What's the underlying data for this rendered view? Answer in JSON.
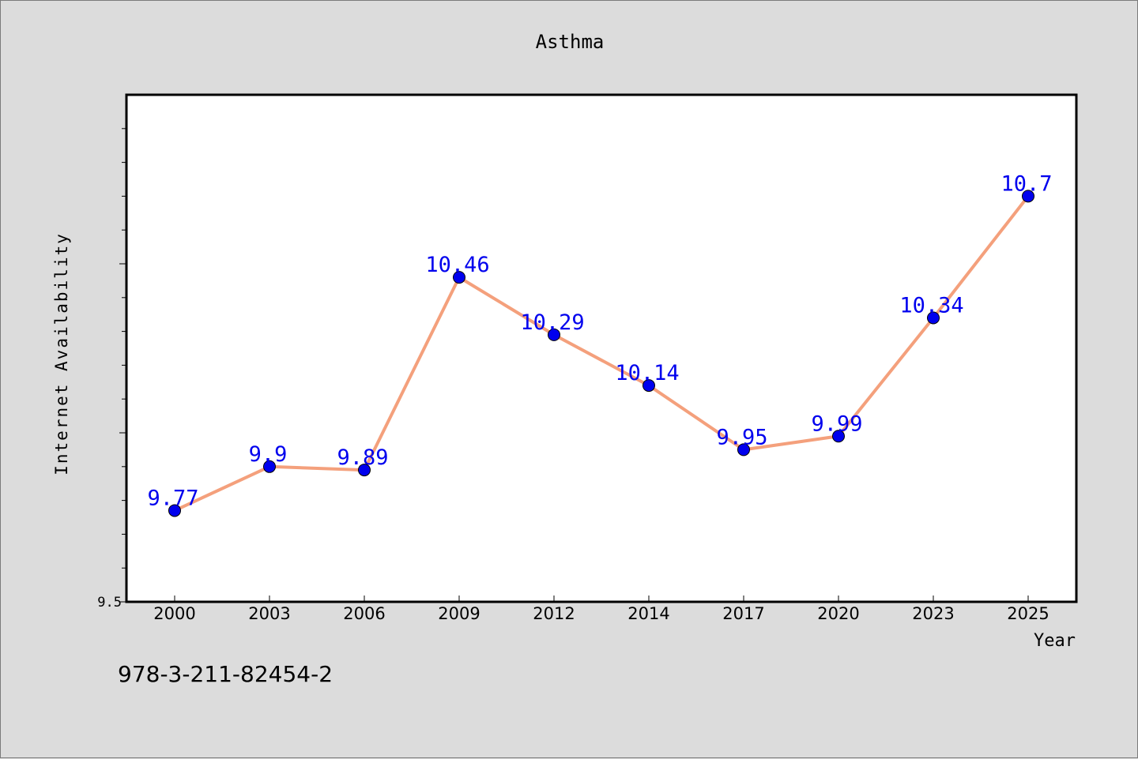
{
  "chart_data": {
    "type": "line",
    "title": "Asthma",
    "xlabel": "Year",
    "ylabel": "Internet Availability",
    "categories": [
      "2000",
      "2003",
      "2006",
      "2009",
      "2012",
      "2014",
      "2017",
      "2020",
      "2023",
      "2025"
    ],
    "series": [
      {
        "values": [
          9.77,
          9.9,
          9.89,
          10.46,
          10.29,
          10.14,
          9.95,
          9.99,
          10.34,
          10.7
        ],
        "data_labels": [
          "9.77",
          "9.9",
          "9.89",
          "10.46",
          "10.29",
          "10.14",
          "9.95",
          "9.99",
          "10.34",
          "10.7"
        ],
        "line_color": "#f4a07c",
        "marker_color": "#0000ee",
        "label_color": "#0000ee"
      }
    ],
    "ylim": [
      9.5,
      11.0
    ],
    "y_tick_labels": [
      "9.5"
    ],
    "grid": false,
    "annotation": "978-3-211-82454-2"
  }
}
